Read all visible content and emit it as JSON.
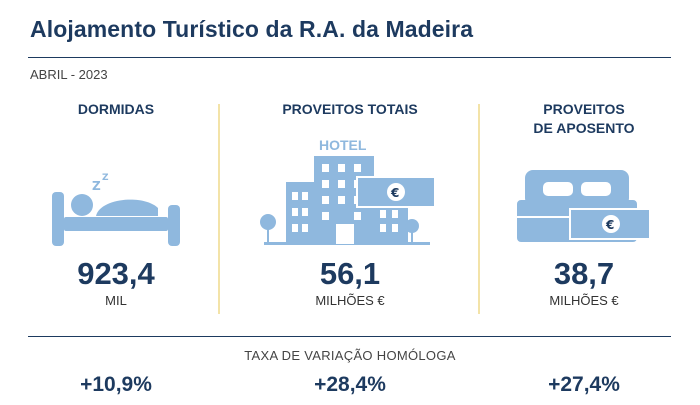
{
  "title": "Alojamento Turístico da R.A. da Madeira",
  "period": "ABRIL - 2023",
  "colors": {
    "primary": "#1d3a5f",
    "icon": "#8fb8de",
    "divider": "#f3e3a8"
  },
  "indicators": [
    {
      "label": "DORMIDAS",
      "value": "923,4",
      "unit": "MIL",
      "icon": "sleeping-person-icon",
      "variation": "+10,9%"
    },
    {
      "label": "PROVEITOS TOTAIS",
      "value": "56,1",
      "unit": "MILHÕES €",
      "icon": "hotel-building-icon",
      "variation": "+28,4%",
      "icon_text": "HOTEL",
      "currency_symbol": "€"
    },
    {
      "label": "PROVEITOS\nDE APOSENTO",
      "value": "38,7",
      "unit": "MILHÕES €",
      "icon": "double-bed-icon",
      "variation": "+27,4%",
      "currency_symbol": "€"
    }
  ],
  "variation_label": "TAXA DE VARIAÇÃO HOMÓLOGA"
}
